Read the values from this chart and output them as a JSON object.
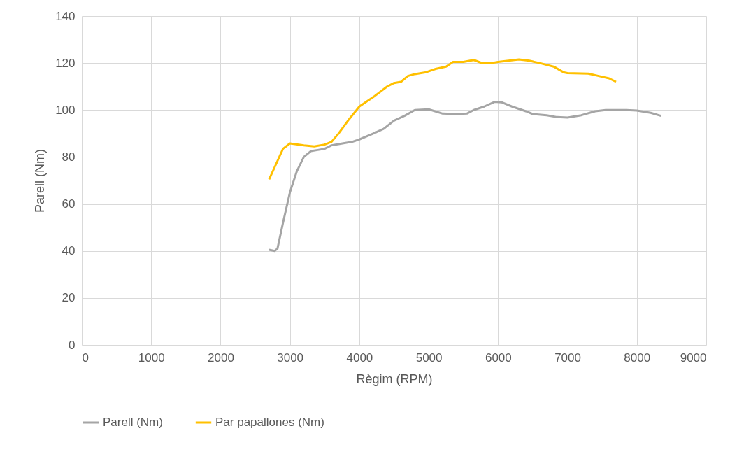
{
  "chart_data": {
    "type": "line",
    "xlabel": "Règim (RPM)",
    "ylabel": "Parell (Nm)",
    "xlim": [
      0,
      9000
    ],
    "xticks": [
      0,
      1000,
      2000,
      3000,
      4000,
      5000,
      6000,
      7000,
      8000,
      9000
    ],
    "ylim": [
      0,
      140
    ],
    "yticks": [
      0,
      20,
      40,
      60,
      80,
      100,
      120,
      140
    ],
    "grid": true,
    "legend": "bottom",
    "marker": "none",
    "line_style": "solid",
    "series": [
      {
        "name": "Parell (Nm)",
        "color": "#a5a5a5",
        "x": [
          2700,
          2780,
          2820,
          2900,
          3000,
          3100,
          3200,
          3300,
          3400,
          3500,
          3600,
          3700,
          3800,
          3900,
          4000,
          4200,
          4350,
          4500,
          4650,
          4800,
          5000,
          5200,
          5400,
          5550,
          5650,
          5800,
          5950,
          6050,
          6200,
          6400,
          6500,
          6700,
          6850,
          7000,
          7200,
          7400,
          7550,
          7700,
          7850,
          8000,
          8200,
          8350
        ],
        "values": [
          40.5,
          40,
          41,
          52,
          65,
          74,
          80,
          82.5,
          83,
          83.5,
          85,
          85.5,
          86,
          86.5,
          87.5,
          90,
          92,
          95.5,
          97.5,
          100,
          100.3,
          98.5,
          98.3,
          98.5,
          100,
          101.5,
          103.5,
          103.3,
          101.5,
          99.5,
          98.3,
          97.8,
          97,
          96.8,
          97.8,
          99.5,
          100,
          100,
          100,
          99.8,
          98.8,
          97.5
        ]
      },
      {
        "name": "Par papallones (Nm)",
        "color": "#ffc000",
        "x": [
          2700,
          2800,
          2900,
          3000,
          3200,
          3350,
          3500,
          3600,
          3700,
          3850,
          4000,
          4200,
          4400,
          4500,
          4600,
          4700,
          4800,
          4950,
          5100,
          5250,
          5350,
          5500,
          5650,
          5750,
          5900,
          6000,
          6150,
          6300,
          6450,
          6600,
          6800,
          6950,
          7000,
          7300,
          7450,
          7600,
          7700
        ],
        "values": [
          70.5,
          77,
          83.5,
          85.8,
          85,
          84.5,
          85.3,
          86.5,
          90,
          96,
          101.5,
          105.5,
          110,
          111.5,
          112,
          114.5,
          115.3,
          116,
          117.5,
          118.5,
          120.5,
          120.5,
          121.3,
          120.2,
          120,
          120.5,
          121,
          121.5,
          121,
          120,
          118.5,
          116,
          115.7,
          115.5,
          114.5,
          113.5,
          112
        ]
      }
    ]
  }
}
